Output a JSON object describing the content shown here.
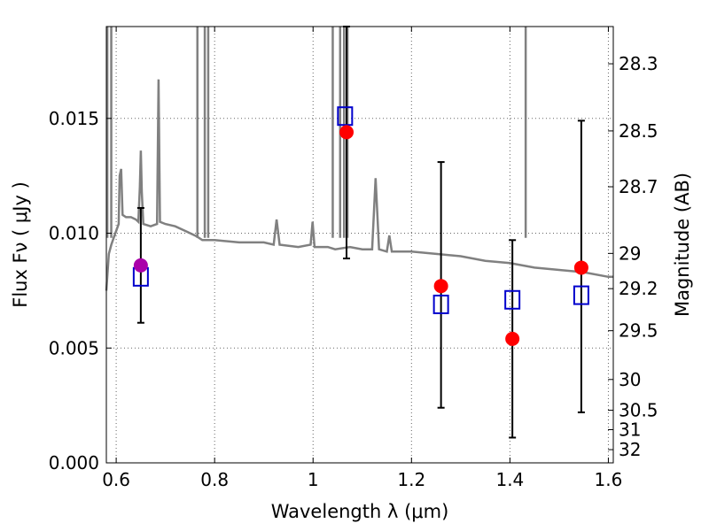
{
  "chart_data": {
    "type": "scatter",
    "title": "",
    "xlabel": "Wavelength  λ (μm)",
    "ylabel": "Flux  Fν  ( μJy )",
    "y2label": "Magnitude (AB)",
    "xlim": [
      0.58,
      1.61
    ],
    "ylim": [
      0.0,
      0.019
    ],
    "xticks": [
      0.6,
      0.8,
      1.0,
      1.2,
      1.4,
      1.6
    ],
    "xtick_labels": [
      "0.6",
      "0.8",
      "1",
      "1.2",
      "1.4",
      "1.6"
    ],
    "yticks": [
      0.0,
      0.005,
      0.01,
      0.015
    ],
    "ytick_labels": [
      "0.000",
      "0.005",
      "0.010",
      "0.015"
    ],
    "y2ticks": [
      28.3,
      28.5,
      28.7,
      29,
      29.2,
      29.5,
      30,
      30.5,
      31,
      32
    ],
    "y2tick_labels": [
      "28.3",
      "28.5",
      "28.7",
      "29",
      "29.2",
      "29.5",
      "30",
      "30.5",
      "31",
      "32"
    ],
    "grid": true,
    "colors": {
      "observed": "#ff0000",
      "model_bands": "#0000cc",
      "special_point": "#aa00aa",
      "spectrum": "#808080",
      "errorbar": "#000000"
    },
    "observed": [
      {
        "x": 0.65,
        "y": 0.0086,
        "yerr_low": 0.0061,
        "yerr_high": 0.0111,
        "color": "#aa00aa"
      },
      {
        "x": 1.068,
        "y": 0.0144,
        "yerr_low": 0.0089,
        "yerr_high": 0.019,
        "color": "#ff0000"
      },
      {
        "x": 1.26,
        "y": 0.0077,
        "yerr_low": 0.0024,
        "yerr_high": 0.0131,
        "color": "#ff0000"
      },
      {
        "x": 1.405,
        "y": 0.0054,
        "yerr_low": 0.0011,
        "yerr_high": 0.0097,
        "color": "#ff0000"
      },
      {
        "x": 1.545,
        "y": 0.0085,
        "yerr_low": 0.0022,
        "yerr_high": 0.0149,
        "color": "#ff0000"
      }
    ],
    "model_bands": [
      {
        "x": 0.65,
        "y": 0.0081
      },
      {
        "x": 1.065,
        "y": 0.0151
      },
      {
        "x": 1.26,
        "y": 0.0069
      },
      {
        "x": 1.405,
        "y": 0.0071
      },
      {
        "x": 1.545,
        "y": 0.0073
      }
    ],
    "spectrum": [
      [
        0.58,
        0.0075
      ],
      [
        0.585,
        0.0091
      ],
      [
        0.59,
        0.0095
      ],
      [
        0.595,
        0.0098
      ],
      [
        0.6,
        0.0101
      ],
      [
        0.605,
        0.0104
      ],
      [
        0.607,
        0.0125
      ],
      [
        0.61,
        0.0128
      ],
      [
        0.613,
        0.0108
      ],
      [
        0.62,
        0.0107
      ],
      [
        0.63,
        0.0107
      ],
      [
        0.64,
        0.0106
      ],
      [
        0.645,
        0.0105
      ],
      [
        0.648,
        0.012
      ],
      [
        0.65,
        0.0136
      ],
      [
        0.652,
        0.0118
      ],
      [
        0.655,
        0.0104
      ],
      [
        0.67,
        0.0103
      ],
      [
        0.683,
        0.0104
      ],
      [
        0.686,
        0.0167
      ],
      [
        0.689,
        0.0105
      ],
      [
        0.7,
        0.0104
      ],
      [
        0.72,
        0.0103
      ],
      [
        0.74,
        0.0101
      ],
      [
        0.76,
        0.0099
      ],
      [
        0.768,
        0.0098
      ],
      [
        0.775,
        0.0097
      ],
      [
        0.8,
        0.0097
      ],
      [
        0.85,
        0.0096
      ],
      [
        0.9,
        0.0096
      ],
      [
        0.92,
        0.0095
      ],
      [
        0.926,
        0.0106
      ],
      [
        0.932,
        0.0095
      ],
      [
        0.97,
        0.0094
      ],
      [
        0.995,
        0.0095
      ],
      [
        0.999,
        0.0105
      ],
      [
        1.003,
        0.0094
      ],
      [
        1.02,
        0.0094
      ],
      [
        1.03,
        0.0094
      ],
      [
        1.045,
        0.0093
      ],
      [
        1.075,
        0.0094
      ],
      [
        1.1,
        0.0093
      ],
      [
        1.12,
        0.0093
      ],
      [
        1.127,
        0.0124
      ],
      [
        1.134,
        0.0093
      ],
      [
        1.15,
        0.0092
      ],
      [
        1.155,
        0.0099
      ],
      [
        1.16,
        0.0092
      ],
      [
        1.2,
        0.0092
      ],
      [
        1.25,
        0.0091
      ],
      [
        1.3,
        0.009
      ],
      [
        1.35,
        0.0088
      ],
      [
        1.4,
        0.0087
      ],
      [
        1.45,
        0.0085
      ],
      [
        1.5,
        0.0084
      ],
      [
        1.55,
        0.0083
      ],
      [
        1.6,
        0.0081
      ],
      [
        1.61,
        0.0081
      ]
    ],
    "spectrum_spikes": [
      [
        0.582,
        0.019
      ],
      [
        0.59,
        0.019
      ],
      [
        0.765,
        0.019
      ],
      [
        0.78,
        0.019
      ],
      [
        0.787,
        0.019
      ],
      [
        1.04,
        0.019
      ],
      [
        1.055,
        0.019
      ],
      [
        1.063,
        0.019
      ],
      [
        1.07,
        0.019
      ],
      [
        1.432,
        0.019
      ]
    ]
  }
}
